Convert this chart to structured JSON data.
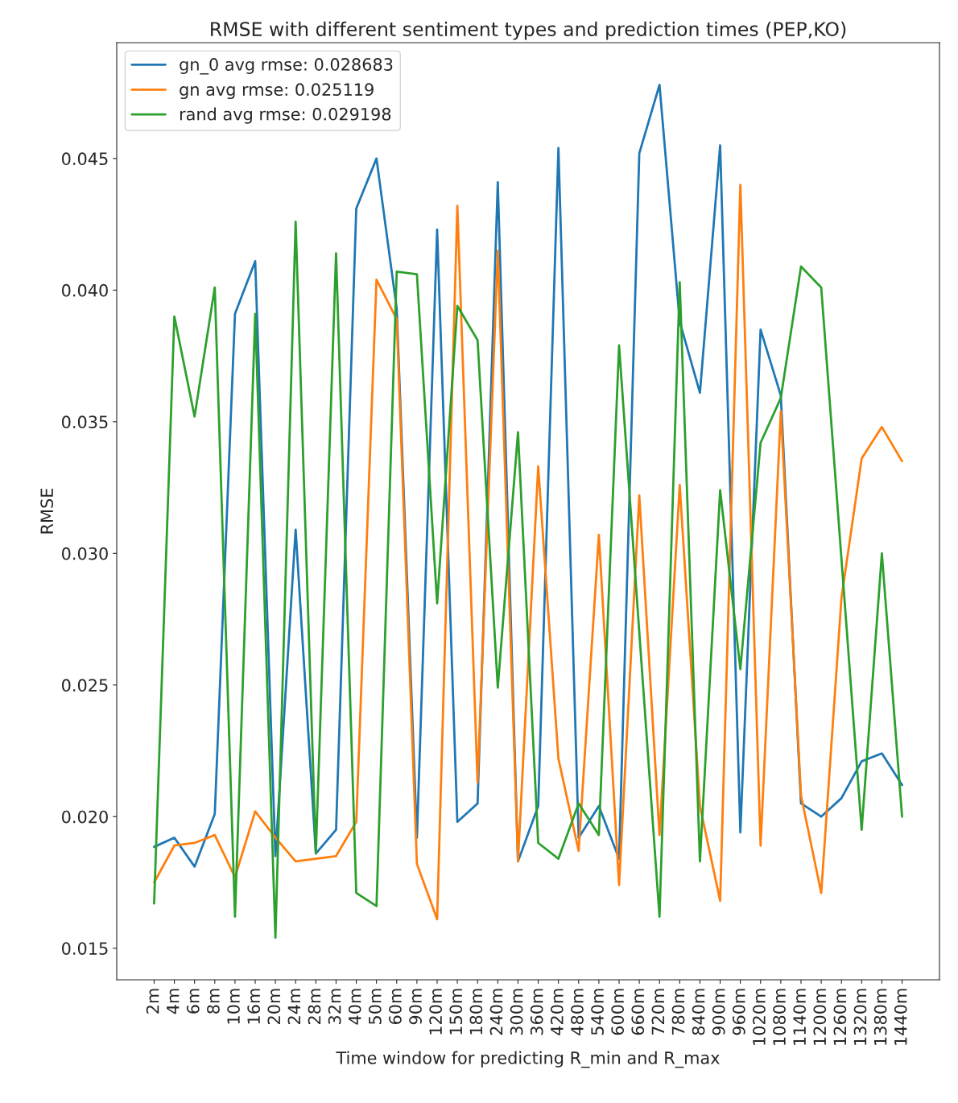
{
  "chart_data": {
    "type": "line",
    "title": "RMSE with different sentiment types and prediction times (PEP,KO)",
    "xlabel": "Time window for predicting R_min and R_max",
    "ylabel": "RMSE",
    "categories": [
      "2m",
      "4m",
      "6m",
      "8m",
      "10m",
      "16m",
      "20m",
      "24m",
      "28m",
      "32m",
      "40m",
      "50m",
      "60m",
      "90m",
      "120m",
      "150m",
      "180m",
      "240m",
      "300m",
      "360m",
      "420m",
      "480m",
      "540m",
      "600m",
      "660m",
      "720m",
      "780m",
      "840m",
      "900m",
      "960m",
      "1020m",
      "1080m",
      "1140m",
      "1200m",
      "1260m",
      "1320m",
      "1380m",
      "1440m"
    ],
    "series": [
      {
        "name": "gn_0 avg rmse: 0.028683",
        "color": "#1f77b4",
        "values": [
          0.01885,
          0.0192,
          0.0181,
          0.0201,
          0.0391,
          0.0411,
          0.0185,
          0.0309,
          0.0186,
          0.0195,
          0.0431,
          0.045,
          0.0393,
          0.0192,
          0.0423,
          0.0198,
          0.0205,
          0.0441,
          0.0183,
          0.0204,
          0.0454,
          0.0192,
          0.0204,
          0.0184,
          0.0452,
          0.0478,
          0.0388,
          0.0361,
          0.0455,
          0.0194,
          0.0385,
          0.036,
          0.0205,
          0.02,
          0.0207,
          0.0221,
          0.0224,
          0.0212
        ]
      },
      {
        "name": "gn avg rmse: 0.025119",
        "color": "#ff7f0e",
        "values": [
          0.0175,
          0.0189,
          0.019,
          0.0193,
          0.0177,
          0.0202,
          0.0192,
          0.0183,
          0.0184,
          0.0185,
          0.0198,
          0.0404,
          0.0389,
          0.0182,
          0.0161,
          0.0432,
          0.0213,
          0.0415,
          0.0183,
          0.0333,
          0.0222,
          0.0187,
          0.0307,
          0.0174,
          0.0322,
          0.0193,
          0.0326,
          0.0204,
          0.0168,
          0.044,
          0.0189,
          0.0354,
          0.0208,
          0.0171,
          0.0283,
          0.0336,
          0.0348,
          0.0335
        ]
      },
      {
        "name": "rand avg rmse: 0.029198",
        "color": "#2ca02c",
        "values": [
          0.0167,
          0.039,
          0.0352,
          0.0401,
          0.0162,
          0.0391,
          0.0154,
          0.0426,
          0.0186,
          0.0414,
          0.0171,
          0.0166,
          0.0407,
          0.0406,
          0.0281,
          0.0394,
          0.0381,
          0.0249,
          0.0346,
          0.019,
          0.0184,
          0.0205,
          0.0193,
          0.0379,
          0.027,
          0.0162,
          0.0403,
          0.0183,
          0.0324,
          0.0256,
          0.0342,
          0.0359,
          0.0409,
          0.0401,
          0.0298,
          0.0195,
          0.03,
          0.02
        ]
      }
    ],
    "ylim": [
      0.0138,
      0.0494
    ],
    "yticks": [
      {
        "value": 0.015,
        "label": "0.015"
      },
      {
        "value": 0.02,
        "label": "0.020"
      },
      {
        "value": 0.025,
        "label": "0.025"
      },
      {
        "value": 0.03,
        "label": "0.030"
      },
      {
        "value": 0.035,
        "label": "0.035"
      },
      {
        "value": 0.04,
        "label": "0.040"
      },
      {
        "value": 0.045,
        "label": "0.045"
      }
    ],
    "legend": "top left",
    "grid": false
  }
}
